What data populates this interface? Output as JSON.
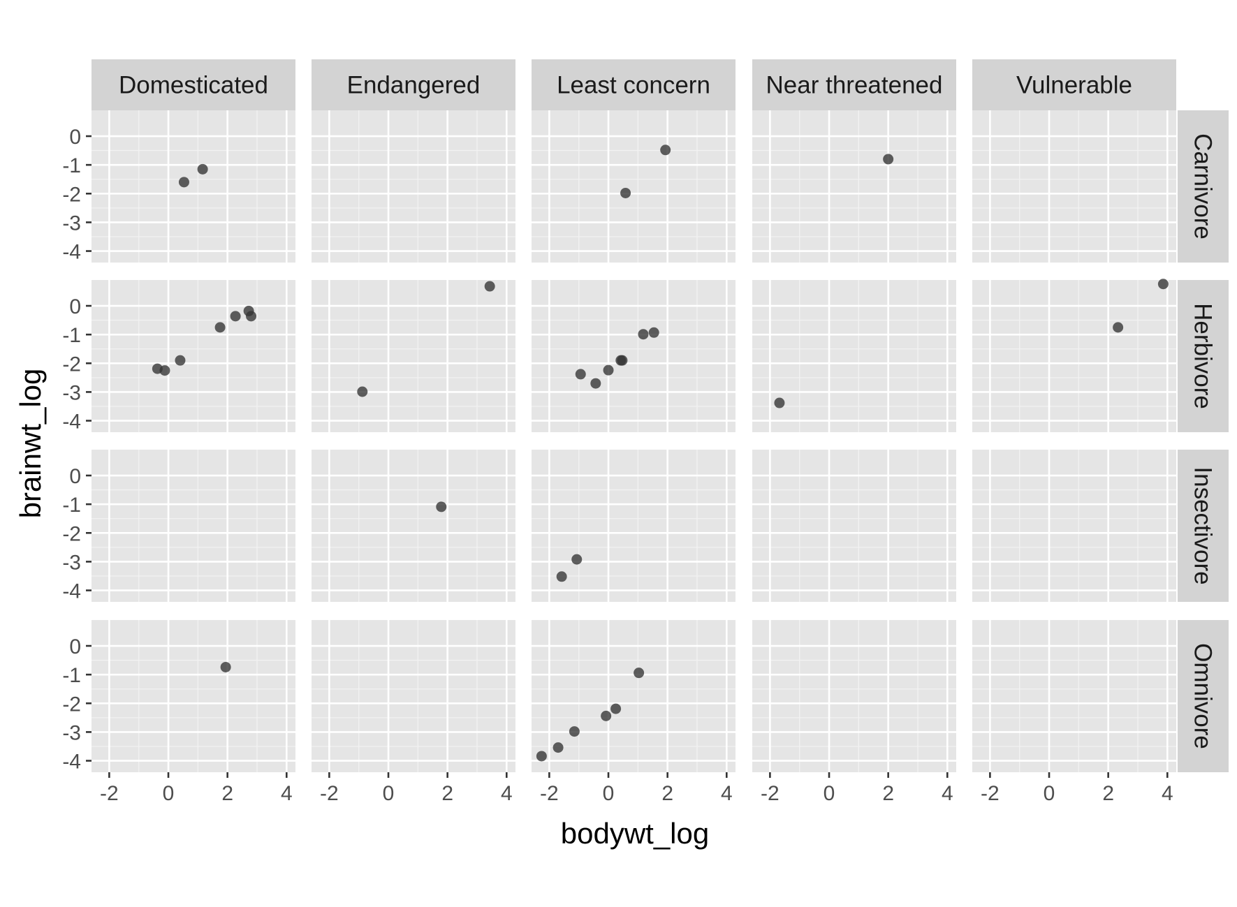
{
  "chart_data": {
    "type": "scatter",
    "xlabel": "bodywt_log",
    "ylabel": "brainwt_log",
    "xlim": [
      -2.6,
      4.3
    ],
    "ylim": [
      -4.4,
      0.9
    ],
    "xticks": [
      -2,
      0,
      2,
      4
    ],
    "yticks": [
      0,
      -1,
      -2,
      -3,
      -4
    ],
    "grid": true,
    "facet_columns": [
      "Domesticated",
      "Endangered",
      "Least concern",
      "Near threatened",
      "Vulnerable"
    ],
    "facet_rows": [
      "Carnivore",
      "Herbivore",
      "Insectivore",
      "Omnivore"
    ],
    "point_color": "#333333",
    "panel_background": "#e5e5e5",
    "strip_background": "#d3d3d3",
    "panels": [
      {
        "row": "Carnivore",
        "column": "Domesticated",
        "points": [
          [
            0.53,
            -1.6
          ],
          [
            1.16,
            -1.15
          ]
        ]
      },
      {
        "row": "Carnivore",
        "column": "Endangered",
        "points": []
      },
      {
        "row": "Carnivore",
        "column": "Least concern",
        "points": [
          [
            0.58,
            -1.98
          ],
          [
            1.93,
            -0.48
          ]
        ]
      },
      {
        "row": "Carnivore",
        "column": "Near threatened",
        "points": [
          [
            2.0,
            -0.8
          ]
        ]
      },
      {
        "row": "Carnivore",
        "column": "Vulnerable",
        "points": []
      },
      {
        "row": "Herbivore",
        "column": "Domesticated",
        "points": [
          [
            -0.37,
            -2.19
          ],
          [
            -0.12,
            -2.25
          ],
          [
            0.4,
            -1.9
          ],
          [
            1.75,
            -0.75
          ],
          [
            2.27,
            -0.36
          ],
          [
            2.72,
            -0.18
          ],
          [
            2.8,
            -0.36
          ]
        ]
      },
      {
        "row": "Herbivore",
        "column": "Endangered",
        "points": [
          [
            -0.88,
            -2.99
          ],
          [
            3.43,
            0.68
          ]
        ]
      },
      {
        "row": "Herbivore",
        "column": "Least concern",
        "points": [
          [
            -0.94,
            -2.38
          ],
          [
            -0.43,
            -2.7
          ],
          [
            0.0,
            -2.24
          ],
          [
            0.42,
            -1.9
          ],
          [
            0.47,
            -1.9
          ],
          [
            1.18,
            -0.99
          ],
          [
            1.54,
            -0.93
          ]
        ]
      },
      {
        "row": "Herbivore",
        "column": "Near threatened",
        "points": [
          [
            -1.68,
            -3.38
          ]
        ]
      },
      {
        "row": "Herbivore",
        "column": "Vulnerable",
        "points": [
          [
            2.33,
            -0.75
          ],
          [
            3.86,
            0.76
          ]
        ]
      },
      {
        "row": "Insectivore",
        "column": "Domesticated",
        "points": []
      },
      {
        "row": "Insectivore",
        "column": "Endangered",
        "points": [
          [
            1.79,
            -1.09
          ]
        ]
      },
      {
        "row": "Insectivore",
        "column": "Least concern",
        "points": [
          [
            -1.07,
            -2.92
          ],
          [
            -1.58,
            -3.52
          ]
        ]
      },
      {
        "row": "Insectivore",
        "column": "Near threatened",
        "points": []
      },
      {
        "row": "Insectivore",
        "column": "Vulnerable",
        "points": []
      },
      {
        "row": "Omnivore",
        "column": "Domesticated",
        "points": [
          [
            1.94,
            -0.74
          ]
        ]
      },
      {
        "row": "Omnivore",
        "column": "Endangered",
        "points": []
      },
      {
        "row": "Omnivore",
        "column": "Least concern",
        "points": [
          [
            -2.26,
            -3.84
          ],
          [
            -1.7,
            -3.54
          ],
          [
            -1.15,
            -2.98
          ],
          [
            -0.08,
            -2.44
          ],
          [
            0.25,
            -2.19
          ],
          [
            1.03,
            -0.94
          ]
        ]
      },
      {
        "row": "Omnivore",
        "column": "Near threatened",
        "points": []
      },
      {
        "row": "Omnivore",
        "column": "Vulnerable",
        "points": []
      }
    ]
  }
}
